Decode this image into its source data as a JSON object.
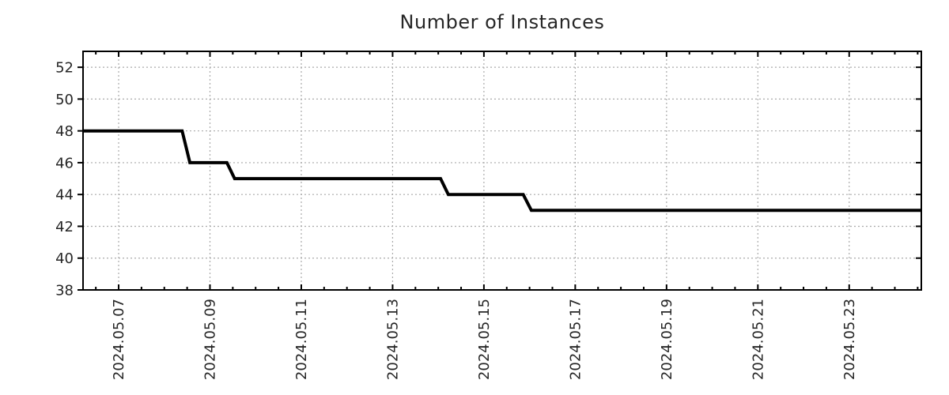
{
  "chart_data": {
    "type": "line",
    "title": "Number of Instances",
    "x_axis": "date (year.month.day, May 2024)",
    "ylabel": "",
    "xlim_days_of_may_2024": [
      6.22,
      24.58
    ],
    "ylim": [
      38,
      53
    ],
    "y_ticks": [
      38,
      40,
      42,
      44,
      46,
      48,
      50,
      52
    ],
    "x_major_ticks": [
      {
        "day": 7,
        "label": "2024.05.07"
      },
      {
        "day": 9,
        "label": "2024.05.09"
      },
      {
        "day": 11,
        "label": "2024.05.11"
      },
      {
        "day": 13,
        "label": "2024.05.13"
      },
      {
        "day": 15,
        "label": "2024.05.15"
      },
      {
        "day": 17,
        "label": "2024.05.17"
      },
      {
        "day": 19,
        "label": "2024.05.19"
      },
      {
        "day": 21,
        "label": "2024.05.21"
      },
      {
        "day": 23,
        "label": "2024.05.23"
      }
    ],
    "x_minor_step_days": 0.5,
    "grid": "dotted, on major ticks both axes",
    "legend": "none",
    "points": [
      {
        "x": 6.22,
        "y": 48
      },
      {
        "x": 8.39,
        "y": 48
      },
      {
        "x": 8.56,
        "y": 46
      },
      {
        "x": 9.37,
        "y": 46
      },
      {
        "x": 9.54,
        "y": 45
      },
      {
        "x": 14.05,
        "y": 45
      },
      {
        "x": 14.22,
        "y": 44
      },
      {
        "x": 15.86,
        "y": 44
      },
      {
        "x": 16.04,
        "y": 43
      },
      {
        "x": 24.58,
        "y": 43
      }
    ],
    "colors": {
      "line": "#000000",
      "axis": "#000000",
      "grid": "#aaaaaa",
      "text": "#262626",
      "background": "#ffffff"
    }
  }
}
